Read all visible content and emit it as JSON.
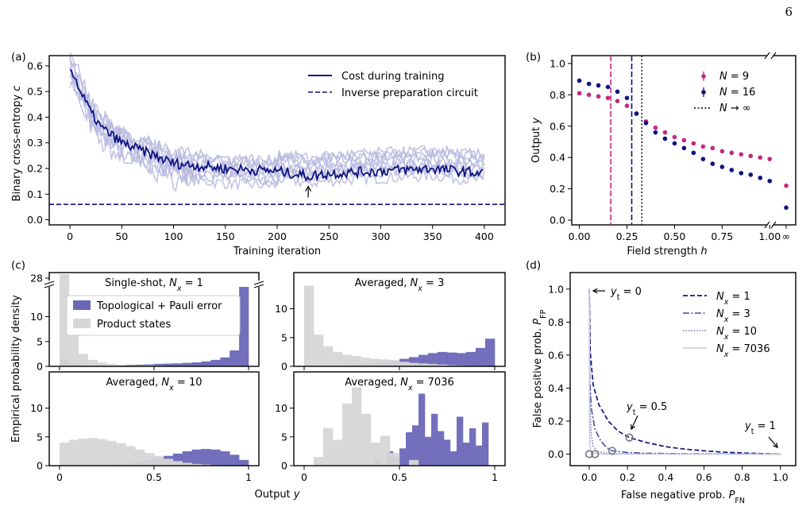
{
  "page_number": "6",
  "colors": {
    "navy": "#0d1380",
    "lavender": "#b8b8df",
    "magenta": "#c8267d",
    "purple": "#6b67b8",
    "grey": "#d6d6d6",
    "pfp_light": "#c9c9e6"
  },
  "chart_data": [
    {
      "panel_label": "(a)",
      "type": "line",
      "xlabel": "Training iteration",
      "ylabel": "Binary cross-entropy c",
      "xlim": [
        -20,
        420
      ],
      "ylim": [
        -0.02,
        0.64
      ],
      "xticks": [
        0,
        50,
        100,
        150,
        200,
        250,
        300,
        350,
        400
      ],
      "yticks": [
        0.0,
        0.1,
        0.2,
        0.3,
        0.4,
        0.5,
        0.6
      ],
      "legend": [
        "Cost during training",
        "Inverse preparation circuit"
      ],
      "legend_position": "top-right",
      "inverse_preparation_level": 0.06,
      "arrow_annotation": {
        "x": 230,
        "y": 0.13
      },
      "cost_curve_envelope": {
        "x": [
          0,
          10,
          20,
          30,
          50,
          75,
          100,
          150,
          200,
          230,
          250,
          300,
          350,
          400
        ],
        "y": [
          0.6,
          0.5,
          0.42,
          0.36,
          0.3,
          0.26,
          0.22,
          0.2,
          0.19,
          0.17,
          0.18,
          0.19,
          0.2,
          0.18
        ]
      },
      "background_runs": 9
    },
    {
      "panel_label": "(b)",
      "type": "scatter",
      "xlabel": "Field strength h",
      "ylabel": "Output y",
      "xlim": [
        -0.04,
        1.12
      ],
      "ylim": [
        -0.03,
        1.05
      ],
      "xticks": [
        "0.00",
        "0.25",
        "0.50",
        "0.75",
        "1.00"
      ],
      "yticks": [
        "0.0",
        "0.2",
        "0.4",
        "0.6",
        "0.8",
        "1.0"
      ],
      "inf_tick": "∞",
      "legend": [
        "N = 9",
        "N = 16",
        "N → ∞"
      ],
      "legend_position": "top-right",
      "series": [
        {
          "name": "N = 9",
          "x": [
            0,
            0.05,
            0.1,
            0.15,
            0.2,
            0.25,
            0.3,
            0.35,
            0.4,
            0.45,
            0.5,
            0.55,
            0.6,
            0.65,
            0.7,
            0.75,
            0.8,
            0.85,
            0.9,
            0.95,
            1.0
          ],
          "y": [
            0.81,
            0.8,
            0.79,
            0.78,
            0.76,
            0.73,
            0.68,
            0.63,
            0.59,
            0.56,
            0.53,
            0.51,
            0.49,
            0.47,
            0.46,
            0.44,
            0.43,
            0.42,
            0.41,
            0.4,
            0.39
          ],
          "inf_value": 0.22
        },
        {
          "name": "N = 16",
          "x": [
            0,
            0.05,
            0.1,
            0.15,
            0.2,
            0.25,
            0.3,
            0.35,
            0.4,
            0.45,
            0.5,
            0.55,
            0.6,
            0.65,
            0.7,
            0.75,
            0.8,
            0.85,
            0.9,
            0.95,
            1.0
          ],
          "y": [
            0.89,
            0.87,
            0.86,
            0.85,
            0.82,
            0.78,
            0.68,
            0.62,
            0.56,
            0.52,
            0.49,
            0.46,
            0.43,
            0.39,
            0.36,
            0.34,
            0.32,
            0.3,
            0.29,
            0.27,
            0.25
          ],
          "inf_value": 0.08
        }
      ],
      "critical_points": {
        "N = 9": 0.165,
        "N = 16": 0.275,
        "N → ∞": 0.328
      }
    },
    {
      "panel_label": "(c)",
      "type": "bar",
      "xlabel": "Output y",
      "ylabel": "Empirical probability density",
      "xticks": [
        "0",
        "0.5",
        "1"
      ],
      "yticks": [
        0,
        5,
        10
      ],
      "broken_axis_tick": "28",
      "legend": [
        "Topological + Pauli error",
        "Product states"
      ],
      "legend_position": "top",
      "subplots": [
        {
          "title": "Single-shot, N_x = 1",
          "product_states": [
            28,
            6.5,
            2.5,
            1.3,
            0.8,
            0.5,
            0.3,
            0.2,
            0.2,
            0.2,
            0.15,
            0.1,
            0.1,
            0.1,
            0.1,
            0.1,
            0.1,
            0.1,
            0.1,
            0.1
          ],
          "topological": [
            1.5,
            0.6,
            0.3,
            0.2,
            0.2,
            0.2,
            0.25,
            0.3,
            0.35,
            0.4,
            0.5,
            0.55,
            0.6,
            0.7,
            0.8,
            1.0,
            1.3,
            1.8,
            3.2,
            16
          ]
        },
        {
          "title": "Averaged, N_x = 3",
          "product_states": [
            14,
            5.5,
            3.5,
            2.5,
            2.0,
            1.8,
            1.5,
            1.3,
            1.2,
            1.0,
            0.8,
            0.6,
            0.5,
            0.4,
            0.3,
            0.2,
            0.15,
            0.1,
            0.1,
            0.05
          ],
          "topological": [
            0.2,
            0.1,
            0.1,
            0.15,
            0.2,
            0.3,
            0.4,
            0.6,
            0.8,
            1.0,
            1.3,
            1.6,
            2.0,
            2.3,
            2.5,
            2.4,
            2.3,
            2.5,
            3.2,
            4.8
          ]
        },
        {
          "title": "Averaged, N_x = 10",
          "product_states": [
            4.0,
            4.5,
            4.7,
            4.8,
            4.6,
            4.3,
            3.9,
            3.4,
            2.8,
            2.2,
            1.7,
            1.2,
            0.8,
            0.5,
            0.3,
            0.2,
            0.1,
            0.05,
            0.0,
            0.0
          ],
          "topological": [
            0.0,
            0.0,
            0.0,
            0.05,
            0.1,
            0.2,
            0.3,
            0.5,
            0.7,
            1.0,
            1.3,
            1.7,
            2.1,
            2.5,
            2.8,
            2.9,
            2.8,
            2.5,
            1.9,
            1.0
          ]
        },
        {
          "title": "Averaged, N_x = 7036",
          "product_states": [
            0,
            1.5,
            6.5,
            4.5,
            10.8,
            13.6,
            9.0,
            4.0,
            5.2,
            2.2,
            0,
            1.0,
            0,
            0,
            0,
            0,
            0,
            0,
            0,
            0
          ],
          "topological": [
            0,
            0,
            0,
            0,
            0,
            0,
            0,
            0,
            0,
            0,
            0,
            1.2,
            0,
            2.5,
            1.5,
            3.0,
            5.8,
            7.0,
            12.5,
            5.0,
            9.0,
            6.0,
            4.5,
            2.5,
            8.5,
            4.0,
            6.5,
            3.5,
            7.5,
            0
          ]
        }
      ]
    },
    {
      "panel_label": "(d)",
      "type": "line",
      "xlabel": "False negative prob. P_FN",
      "ylabel": "False positive prob. P_FP",
      "xlim": [
        -0.1,
        1.08
      ],
      "ylim": [
        -0.07,
        1.1
      ],
      "xticks": [
        "0.0",
        "0.2",
        "0.4",
        "0.6",
        "0.8",
        "1.0"
      ],
      "yticks": [
        "0.0",
        "0.2",
        "0.4",
        "0.6",
        "0.8",
        "1.0"
      ],
      "legend": [
        "N_x = 1",
        "N_x = 3",
        "N_x = 10",
        "N_x = 7036"
      ],
      "legend_position": "top-right",
      "annotations": [
        "y_t = 0",
        "y_t = 0.5",
        "y_t = 1"
      ],
      "series": [
        {
          "name": "N_x = 1",
          "x": [
            0,
            0.005,
            0.02,
            0.05,
            0.1,
            0.15,
            0.21,
            0.3,
            0.4,
            0.5,
            0.6,
            0.7,
            0.8,
            0.9,
            1.0
          ],
          "y": [
            1.0,
            0.62,
            0.42,
            0.3,
            0.2,
            0.14,
            0.1,
            0.07,
            0.045,
            0.03,
            0.02,
            0.012,
            0.007,
            0.003,
            0.0
          ]
        },
        {
          "name": "N_x = 3",
          "x": [
            0,
            0.003,
            0.01,
            0.03,
            0.06,
            0.09,
            0.12,
            0.2,
            0.3,
            0.5,
            1.0
          ],
          "y": [
            1.0,
            0.45,
            0.28,
            0.15,
            0.08,
            0.04,
            0.02,
            0.01,
            0.005,
            0.002,
            0.0
          ]
        },
        {
          "name": "N_x = 10",
          "x": [
            0,
            0.002,
            0.005,
            0.01,
            0.02,
            0.04,
            0.1,
            0.5,
            1.0
          ],
          "y": [
            1.0,
            0.5,
            0.25,
            0.12,
            0.05,
            0.015,
            0.003,
            0.0,
            0.0
          ]
        },
        {
          "name": "N_x = 7036",
          "x": [
            0,
            0.001,
            0.003,
            0.01,
            0.05,
            1.0
          ],
          "y": [
            1.0,
            0.2,
            0.05,
            0.01,
            0.0,
            0.0
          ]
        }
      ],
      "threshold_markers": [
        {
          "x": 0.0,
          "y": 0.0
        },
        {
          "x": 0.03,
          "y": 0.0
        },
        {
          "x": 0.12,
          "y": 0.02
        },
        {
          "x": 0.21,
          "y": 0.1
        }
      ]
    }
  ]
}
